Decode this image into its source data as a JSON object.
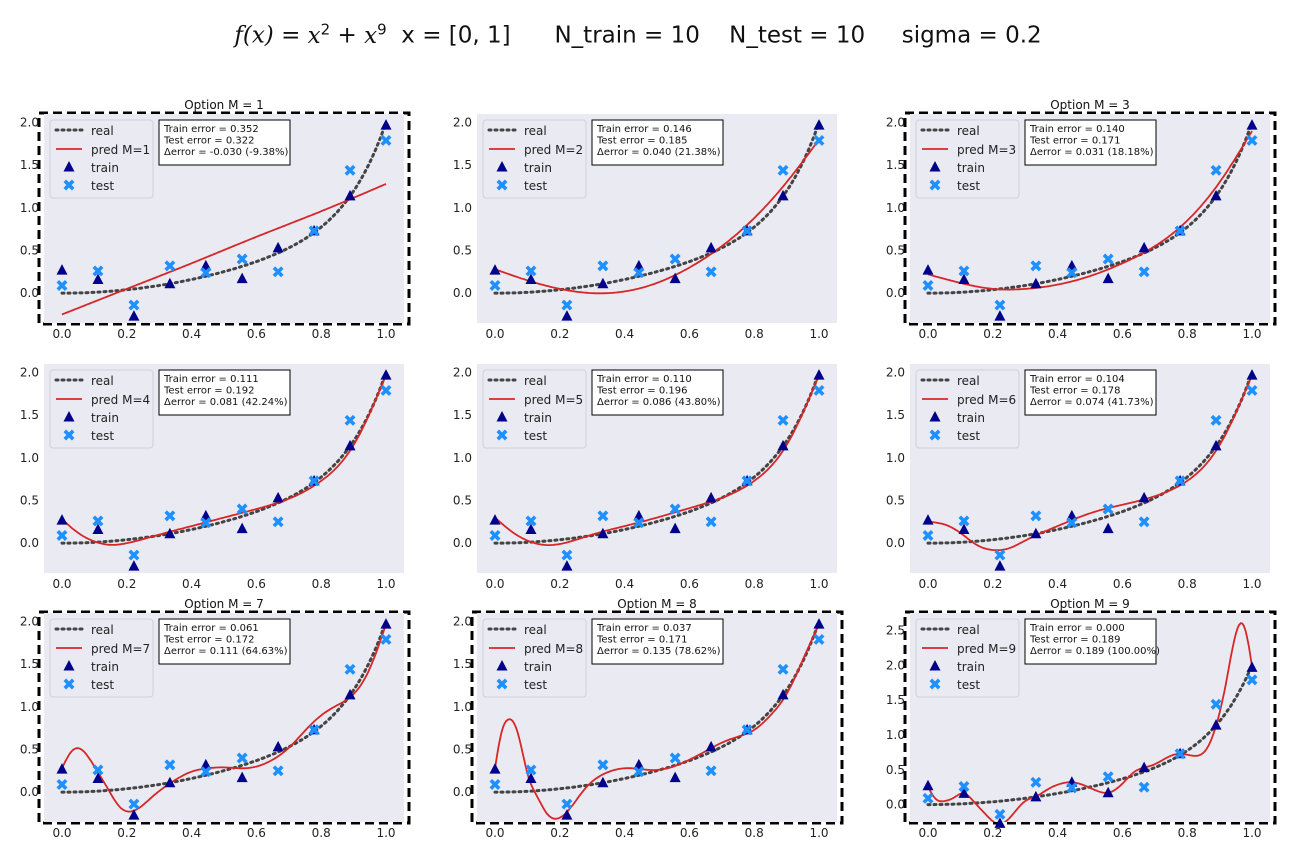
{
  "figure": {
    "title_fx": "f(x)",
    "title_eq_terms": [
      "x",
      "2",
      "x",
      "9"
    ],
    "title_rest": "x = [0, 1]      N_train = 10    N_test = 10     sigma = 0.2",
    "colors": {
      "axes_bg": "#eaeaf2",
      "real": "#444444",
      "pred": "#d62728",
      "train": "#00008b",
      "test": "#1e90ff",
      "frame": "#000000"
    }
  },
  "chart_data": [
    {
      "type": "line",
      "M": 1,
      "title": "Option M = 1",
      "framed": true,
      "legend": {
        "position": "top-left",
        "entries": [
          "real",
          "pred M=1",
          "train",
          "test"
        ]
      },
      "info": [
        "Train error = 0.352",
        "Test error = 0.322",
        "Δerror = -0.030 (-9.38%)"
      ],
      "xlim": [
        0,
        1
      ],
      "ylim": [
        -0.35,
        2.1
      ],
      "xticks": [
        0,
        0.2,
        0.4,
        0.6,
        0.8,
        1
      ],
      "xtick_labels": [
        "0.0",
        "0.2",
        "0.4",
        "0.6",
        "0.8",
        "1.0"
      ],
      "yticks": [
        0,
        0.5,
        1,
        1.5,
        2
      ],
      "ytick_labels": [
        "0.0",
        "0.5",
        "1.0",
        "1.5",
        "2.0"
      ],
      "pred_curve": {
        "x": [
          0,
          0.2,
          0.4,
          0.6,
          0.8,
          1.0
        ],
        "y": [
          -0.25,
          0.05,
          0.35,
          0.66,
          0.96,
          1.28
        ]
      }
    },
    {
      "type": "line",
      "M": 2,
      "title": "",
      "framed": false,
      "legend": {
        "position": "top-left",
        "entries": [
          "real",
          "pred M=2",
          "train",
          "test"
        ]
      },
      "info": [
        "Train error = 0.146",
        "Test error = 0.185",
        "Δerror = 0.040 (21.38%)"
      ],
      "xlim": [
        0,
        1
      ],
      "ylim": [
        -0.35,
        2.1
      ],
      "xticks": [
        0,
        0.2,
        0.4,
        0.6,
        0.8,
        1
      ],
      "xtick_labels": [
        "0.0",
        "0.2",
        "0.4",
        "0.6",
        "0.8",
        "1.0"
      ],
      "yticks": [
        0,
        0.5,
        1,
        1.5,
        2
      ],
      "ytick_labels": [
        "0.0",
        "0.5",
        "1.0",
        "1.5",
        "2.0"
      ],
      "pred_curve": {
        "x": [
          0,
          0.1,
          0.2,
          0.3,
          0.4,
          0.5,
          0.6,
          0.7,
          0.8,
          0.9,
          1.0
        ],
        "y": [
          0.28,
          0.15,
          0.05,
          0.0,
          0.02,
          0.12,
          0.3,
          0.55,
          0.88,
          1.3,
          1.8
        ]
      }
    },
    {
      "type": "line",
      "M": 3,
      "title": "Option M = 3",
      "framed": true,
      "legend": {
        "position": "top-left",
        "entries": [
          "real",
          "pred M=3",
          "train",
          "test"
        ]
      },
      "info": [
        "Train error = 0.140",
        "Test error = 0.171",
        "Δerror = 0.031 (18.18%)"
      ],
      "xlim": [
        0,
        1
      ],
      "ylim": [
        -0.35,
        2.1
      ],
      "xticks": [
        0,
        0.2,
        0.4,
        0.6,
        0.8,
        1
      ],
      "xtick_labels": [
        "0.0",
        "0.2",
        "0.4",
        "0.6",
        "0.8",
        "1.0"
      ],
      "yticks": [
        0,
        0.5,
        1,
        1.5,
        2
      ],
      "ytick_labels": [
        "0.0",
        "0.5",
        "1.0",
        "1.5",
        "2.0"
      ],
      "pred_curve": {
        "x": [
          0,
          0.1,
          0.2,
          0.3,
          0.4,
          0.5,
          0.6,
          0.7,
          0.8,
          0.9,
          1.0
        ],
        "y": [
          0.22,
          0.12,
          0.05,
          0.05,
          0.1,
          0.2,
          0.35,
          0.55,
          0.85,
          1.3,
          1.9
        ]
      }
    },
    {
      "type": "line",
      "M": 4,
      "title": "",
      "framed": false,
      "legend": {
        "position": "top-left",
        "entries": [
          "real",
          "pred M=4",
          "train",
          "test"
        ]
      },
      "info": [
        "Train error = 0.111",
        "Test error = 0.192",
        "Δerror = 0.081 (42.24%)"
      ],
      "xlim": [
        0,
        1
      ],
      "ylim": [
        -0.35,
        2.1
      ],
      "xticks": [
        0,
        0.2,
        0.4,
        0.6,
        0.8,
        1
      ],
      "xtick_labels": [
        "0.0",
        "0.2",
        "0.4",
        "0.6",
        "0.8",
        "1.0"
      ],
      "yticks": [
        0,
        0.5,
        1,
        1.5,
        2
      ],
      "ytick_labels": [
        "0.0",
        "0.5",
        "1.0",
        "1.5",
        "2.0"
      ],
      "pred_curve": {
        "x": [
          0,
          0.05,
          0.1,
          0.15,
          0.2,
          0.3,
          0.4,
          0.5,
          0.6,
          0.7,
          0.8,
          0.9,
          1.0
        ],
        "y": [
          0.28,
          0.12,
          0.02,
          -0.02,
          0.0,
          0.1,
          0.2,
          0.3,
          0.4,
          0.52,
          0.73,
          1.15,
          1.97
        ]
      }
    },
    {
      "type": "line",
      "M": 5,
      "title": "",
      "framed": false,
      "legend": {
        "position": "top-left",
        "entries": [
          "real",
          "pred M=5",
          "train",
          "test"
        ]
      },
      "info": [
        "Train error = 0.110",
        "Test error = 0.196",
        "Δerror = 0.086 (43.80%)"
      ],
      "xlim": [
        0,
        1
      ],
      "ylim": [
        -0.35,
        2.1
      ],
      "xticks": [
        0,
        0.2,
        0.4,
        0.6,
        0.8,
        1
      ],
      "xtick_labels": [
        "0.0",
        "0.2",
        "0.4",
        "0.6",
        "0.8",
        "1.0"
      ],
      "yticks": [
        0,
        0.5,
        1,
        1.5,
        2
      ],
      "ytick_labels": [
        "0.0",
        "0.5",
        "1.0",
        "1.5",
        "2.0"
      ],
      "pred_curve": {
        "x": [
          0,
          0.05,
          0.1,
          0.15,
          0.2,
          0.3,
          0.4,
          0.5,
          0.6,
          0.7,
          0.8,
          0.9,
          1.0
        ],
        "y": [
          0.3,
          0.14,
          0.03,
          -0.02,
          -0.01,
          0.1,
          0.2,
          0.3,
          0.41,
          0.53,
          0.73,
          1.15,
          1.97
        ]
      }
    },
    {
      "type": "line",
      "M": 6,
      "title": "",
      "framed": false,
      "legend": {
        "position": "top-left",
        "entries": [
          "real",
          "pred M=6",
          "train",
          "test"
        ]
      },
      "info": [
        "Train error = 0.104",
        "Test error = 0.178",
        "Δerror = 0.074 (41.73%)"
      ],
      "xlim": [
        0,
        1
      ],
      "ylim": [
        -0.35,
        2.1
      ],
      "xticks": [
        0,
        0.2,
        0.4,
        0.6,
        0.8,
        1
      ],
      "xtick_labels": [
        "0.0",
        "0.2",
        "0.4",
        "0.6",
        "0.8",
        "1.0"
      ],
      "yticks": [
        0,
        0.5,
        1,
        1.5,
        2
      ],
      "ytick_labels": [
        "0.0",
        "0.5",
        "1.0",
        "1.5",
        "2.0"
      ],
      "pred_curve": {
        "x": [
          0,
          0.05,
          0.1,
          0.15,
          0.2,
          0.25,
          0.3,
          0.4,
          0.5,
          0.6,
          0.7,
          0.8,
          0.9,
          1.0
        ],
        "y": [
          0.25,
          0.22,
          0.12,
          -0.02,
          -0.08,
          -0.06,
          0.03,
          0.2,
          0.35,
          0.45,
          0.55,
          0.73,
          1.15,
          1.97
        ]
      }
    },
    {
      "type": "line",
      "M": 7,
      "title": "Option M = 7",
      "framed": true,
      "legend": {
        "position": "top-left",
        "entries": [
          "real",
          "pred M=7",
          "train",
          "test"
        ]
      },
      "info": [
        "Train error = 0.061",
        "Test error = 0.172",
        "Δerror = 0.111 (64.63%)"
      ],
      "xlim": [
        0,
        1
      ],
      "ylim": [
        -0.35,
        2.1
      ],
      "xticks": [
        0,
        0.2,
        0.4,
        0.6,
        0.8,
        1
      ],
      "xtick_labels": [
        "0.0",
        "0.2",
        "0.4",
        "0.6",
        "0.8",
        "1.0"
      ],
      "yticks": [
        0,
        0.5,
        1,
        1.5,
        2
      ],
      "ytick_labels": [
        "0.0",
        "0.5",
        "1.0",
        "1.5",
        "2.0"
      ],
      "pred_curve": {
        "x": [
          0,
          0.03,
          0.06,
          0.1,
          0.14,
          0.18,
          0.22,
          0.28,
          0.34,
          0.4,
          0.45,
          0.5,
          0.55,
          0.6,
          0.65,
          0.7,
          0.75,
          0.8,
          0.85,
          0.9,
          0.95,
          1.0
        ],
        "y": [
          0.28,
          0.48,
          0.5,
          0.3,
          0.05,
          -0.18,
          -0.22,
          -0.05,
          0.12,
          0.24,
          0.28,
          0.29,
          0.28,
          0.3,
          0.38,
          0.52,
          0.72,
          0.9,
          1.02,
          1.15,
          1.45,
          1.97
        ]
      }
    },
    {
      "type": "line",
      "M": 8,
      "title": "Option M = 8",
      "framed": true,
      "legend": {
        "position": "top-left",
        "entries": [
          "real",
          "pred M=8",
          "train",
          "test"
        ]
      },
      "info": [
        "Train error = 0.037",
        "Test error = 0.171",
        "Δerror = 0.135 (78.62%)"
      ],
      "xlim": [
        0,
        1
      ],
      "ylim": [
        -0.35,
        2.1
      ],
      "xticks": [
        0,
        0.2,
        0.4,
        0.6,
        0.8,
        1
      ],
      "xtick_labels": [
        "0.0",
        "0.2",
        "0.4",
        "0.6",
        "0.8",
        "1.0"
      ],
      "yticks": [
        0,
        0.5,
        1,
        1.5,
        2
      ],
      "ytick_labels": [
        "0.0",
        "0.5",
        "1.0",
        "1.5",
        "2.0"
      ],
      "pred_curve": {
        "x": [
          0,
          0.02,
          0.04,
          0.06,
          0.08,
          0.1,
          0.13,
          0.16,
          0.2,
          0.24,
          0.28,
          0.32,
          0.36,
          0.4,
          0.45,
          0.5,
          0.55,
          0.6,
          0.65,
          0.7,
          0.75,
          0.8,
          0.85,
          0.9,
          0.95,
          1.0
        ],
        "y": [
          0.28,
          0.7,
          0.85,
          0.8,
          0.55,
          0.22,
          -0.05,
          -0.25,
          -0.3,
          -0.15,
          0.05,
          0.18,
          0.25,
          0.28,
          0.27,
          0.26,
          0.3,
          0.38,
          0.48,
          0.58,
          0.65,
          0.73,
          0.9,
          1.15,
          1.55,
          1.97
        ]
      }
    },
    {
      "type": "line",
      "M": 9,
      "title": "Option M = 9",
      "framed": true,
      "legend": {
        "position": "top-left",
        "entries": [
          "real",
          "pred M=9",
          "train",
          "test"
        ]
      },
      "info": [
        "Train error = 0.000",
        "Test error = 0.189",
        "Δerror = 0.189 (100.00%)"
      ],
      "xlim": [
        0,
        1
      ],
      "ylim": [
        -0.25,
        2.75
      ],
      "xticks": [
        0,
        0.2,
        0.4,
        0.6,
        0.8,
        1
      ],
      "xtick_labels": [
        "0.0",
        "0.2",
        "0.4",
        "0.6",
        "0.8",
        "1.0"
      ],
      "yticks": [
        0,
        0.5,
        1,
        1.5,
        2,
        2.5
      ],
      "ytick_labels": [
        "0.0",
        "0.5",
        "1.0",
        "1.5",
        "2.0",
        "2.5"
      ],
      "pred_curve": {
        "x": [
          0,
          0.02,
          0.05,
          0.08,
          0.11,
          0.14,
          0.18,
          0.22,
          0.26,
          0.3,
          0.33,
          0.37,
          0.41,
          0.44,
          0.48,
          0.52,
          0.555,
          0.6,
          0.64,
          0.667,
          0.7,
          0.74,
          0.778,
          0.82,
          0.86,
          0.889,
          0.92,
          0.95,
          0.97,
          0.985,
          1.0
        ],
        "y": [
          0.26,
          0.1,
          0.05,
          0.1,
          0.16,
          0.05,
          -0.15,
          -0.28,
          -0.15,
          0.05,
          0.11,
          0.22,
          0.3,
          0.32,
          0.28,
          0.2,
          0.17,
          0.3,
          0.48,
          0.53,
          0.58,
          0.68,
          0.73,
          0.7,
          0.8,
          1.13,
          1.75,
          2.45,
          2.6,
          2.4,
          1.98
        ]
      }
    }
  ],
  "shared_points": {
    "real_curve_note": "f(x) = x^2 + x^9",
    "train": {
      "x": [
        0,
        0.111,
        0.222,
        0.333,
        0.444,
        0.556,
        0.667,
        0.778,
        0.889,
        1.0
      ],
      "y": [
        0.27,
        0.16,
        -0.27,
        0.11,
        0.32,
        0.17,
        0.53,
        0.73,
        1.14,
        1.97
      ]
    },
    "test": {
      "x": [
        0,
        0.111,
        0.222,
        0.333,
        0.444,
        0.556,
        0.667,
        0.778,
        0.889,
        1.0
      ],
      "y": [
        0.09,
        0.26,
        -0.14,
        0.32,
        0.24,
        0.4,
        0.25,
        0.73,
        1.44,
        1.79
      ]
    }
  }
}
